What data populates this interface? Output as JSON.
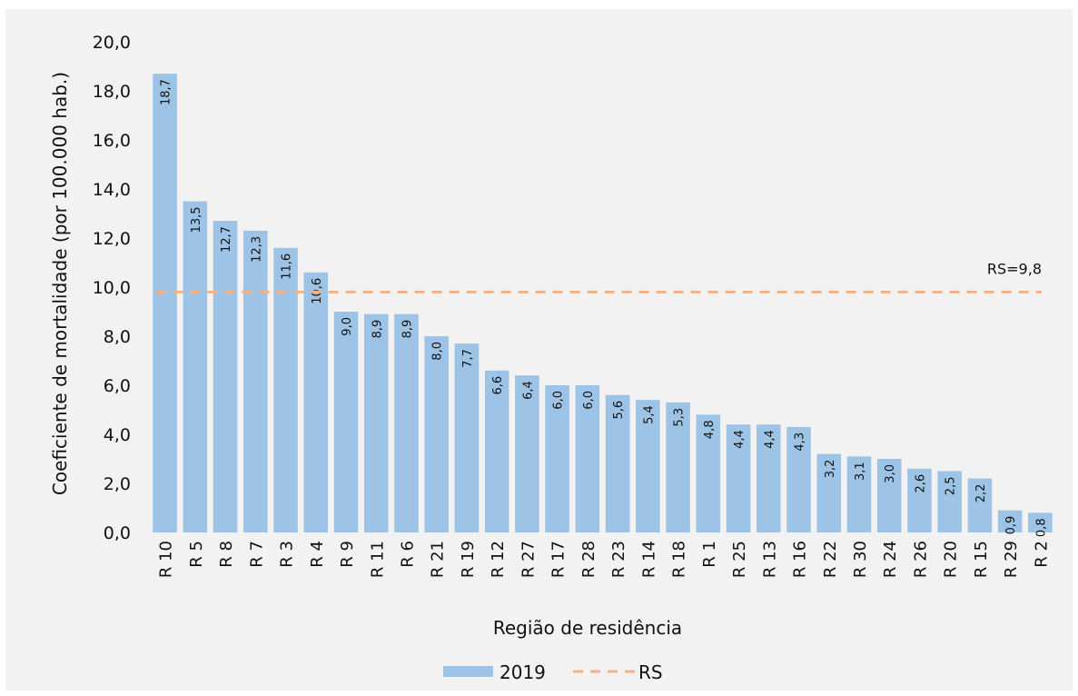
{
  "chart_data": {
    "type": "bar",
    "xlabel": "Região de residência",
    "ylabel": "Coeficiente de mortalidade (por 100.000 hab.)",
    "ylim": [
      0,
      20
    ],
    "yticks": [
      "0,0",
      "2,0",
      "4,0",
      "6,0",
      "8,0",
      "10,0",
      "12,0",
      "14,0",
      "16,0",
      "18,0",
      "20,0"
    ],
    "categories": [
      "R 10",
      "R 5",
      "R 8",
      "R 7",
      "R 3",
      "R 4",
      "R 9",
      "R 11",
      "R 6",
      "R 21",
      "R 19",
      "R 12",
      "R 27",
      "R 17",
      "R 28",
      "R 23",
      "R 14",
      "R 18",
      "R 1",
      "R 25",
      "R 13",
      "R 16",
      "R 22",
      "R 30",
      "R 24",
      "R 26",
      "R 20",
      "R 15",
      "R 29",
      "R 2"
    ],
    "series": [
      {
        "name": "2019",
        "color": "#9dc3e6",
        "values": [
          18.7,
          13.5,
          12.7,
          12.3,
          11.6,
          10.6,
          9.0,
          8.9,
          8.9,
          8.0,
          7.7,
          6.6,
          6.4,
          6.0,
          6.0,
          5.6,
          5.4,
          5.3,
          4.8,
          4.4,
          4.4,
          4.3,
          3.2,
          3.1,
          3.0,
          2.6,
          2.5,
          2.2,
          0.9,
          0.8
        ],
        "labels": [
          "18,7",
          "13,5",
          "12,7",
          "12,3",
          "11,6",
          "10,6",
          "9,0",
          "8,9",
          "8,9",
          "8,0",
          "7,7",
          "6,6",
          "6,4",
          "6,0",
          "6,0",
          "5,6",
          "5,4",
          "5,3",
          "4,8",
          "4,4",
          "4,4",
          "4,3",
          "3,2",
          "3,1",
          "3,0",
          "2,6",
          "2,5",
          "2,2",
          "0,9",
          "0,8"
        ]
      }
    ],
    "reference_line": {
      "name": "RS",
      "value": 9.8,
      "label": "RS=9,8",
      "color": "#f4b183",
      "style": "dashed"
    },
    "legend": {
      "placement": "bottom",
      "entries": [
        "2019",
        "RS"
      ]
    },
    "grid": false
  }
}
